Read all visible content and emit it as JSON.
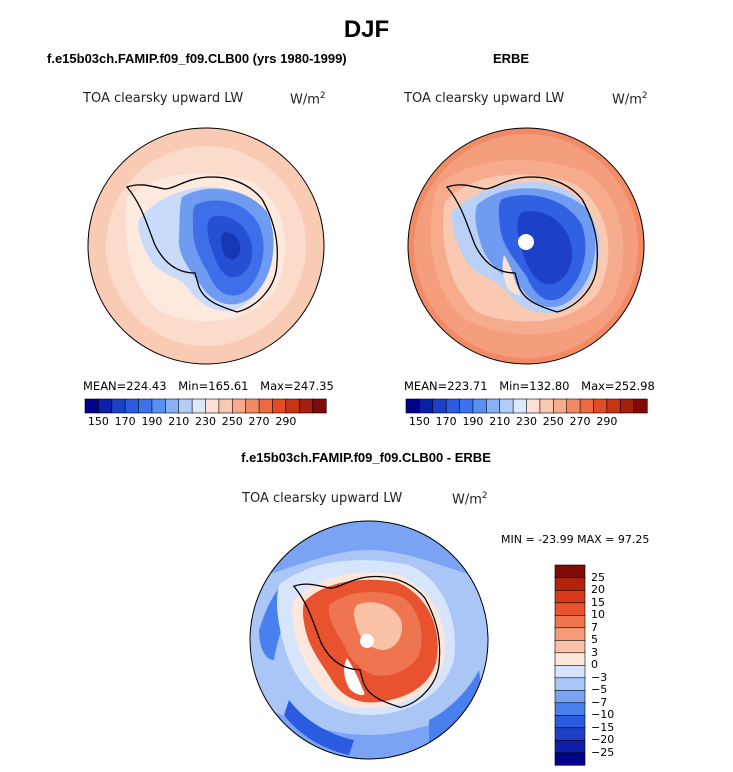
{
  "figure": {
    "title": "DJF"
  },
  "panels": [
    {
      "title": "f.e15b03ch.FAMIP.f09_f09.CLB00 (yrs 1980-1999)",
      "variable": "TOA clearsky upward LW",
      "units": "W/m",
      "units_exp": "2",
      "stats": {
        "mean_label": "MEAN=",
        "mean": "224.43",
        "min_label": "Min=",
        "min": "165.61",
        "max_label": "Max=",
        "max": "247.35"
      }
    },
    {
      "title": "ERBE",
      "variable": "TOA clearsky upward LW",
      "units": "W/m",
      "units_exp": "2",
      "stats": {
        "mean_label": "MEAN=",
        "mean": "223.71",
        "min_label": "Min=",
        "min": "132.80",
        "max_label": "Max=",
        "max": "252.98"
      }
    },
    {
      "title": "f.e15b03ch.FAMIP.f09_f09.CLB00 - ERBE",
      "variable": "TOA clearsky upward LW",
      "units": "W/m",
      "units_exp": "2",
      "minmax_text": "MIN = -23.99 MAX =  97.25"
    }
  ],
  "abs_colorbar": {
    "colors": [
      "#00008b",
      "#0b1fa8",
      "#1d40c8",
      "#2b5be0",
      "#3d72ee",
      "#5a8ff2",
      "#88b0f4",
      "#b3cdf7",
      "#dce8fb",
      "#fbe2d5",
      "#f9c9b2",
      "#f7ab8d",
      "#f28a66",
      "#ec6a43",
      "#e24b26",
      "#c93316",
      "#a61e0d",
      "#800a06"
    ],
    "tick_labels": [
      "150",
      "170",
      "190",
      "210",
      "230",
      "250",
      "270",
      "290"
    ]
  },
  "diff_colorbar": {
    "colors": [
      "#00008b",
      "#0b1fa8",
      "#1d40c8",
      "#2b5be0",
      "#4a80ee",
      "#7aa4f3",
      "#a9c6f7",
      "#d6e5fb",
      "#fde6da",
      "#f9c1a6",
      "#f49b78",
      "#ee7550",
      "#e8522e",
      "#d63a1a",
      "#b2230c",
      "#800a06"
    ],
    "tick_labels": [
      "25",
      "20",
      "15",
      "10",
      "7",
      "5",
      "3",
      "0",
      "−3",
      "−5",
      "−7",
      "−10",
      "−15",
      "−20",
      "−25"
    ]
  }
}
